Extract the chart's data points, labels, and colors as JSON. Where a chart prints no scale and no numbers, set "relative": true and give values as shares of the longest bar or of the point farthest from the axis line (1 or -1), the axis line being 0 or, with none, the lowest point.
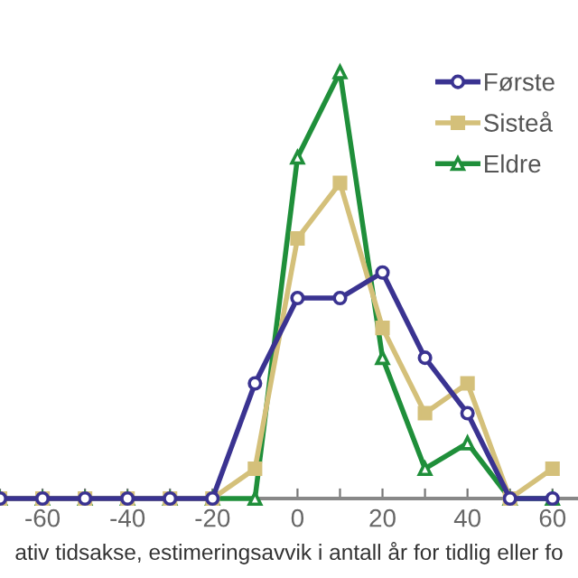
{
  "chart_data": {
    "type": "line",
    "relative": true,
    "xlabel": "ativ tidsakse, estimeringsavvik i antall år for tidlig eller fo",
    "x": [
      -70,
      -60,
      -50,
      -40,
      -30,
      -20,
      -10,
      0,
      10,
      20,
      30,
      40,
      50,
      60
    ],
    "xlim": [
      -70,
      66
    ],
    "xticks": [
      {
        "value": -70,
        "label": null
      },
      -60,
      {
        "value": -50,
        "label": null
      },
      -40,
      {
        "value": -30,
        "label": null
      },
      -20,
      {
        "value": -10,
        "label": null
      },
      0,
      {
        "value": 10,
        "label": null
      },
      20,
      {
        "value": 30,
        "label": null
      },
      40,
      {
        "value": 50,
        "label": null
      },
      60
    ],
    "series": [
      {
        "name": "Første",
        "color": "#3a3391",
        "marker": "circle",
        "values": [
          0,
          0,
          0,
          0,
          0,
          0,
          0.27,
          0.47,
          0.47,
          0.53,
          0.33,
          0.2,
          0,
          0
        ]
      },
      {
        "name": "Sisteå",
        "color": "#d4c07a",
        "marker": "square",
        "values": [
          0,
          0,
          0,
          0,
          0,
          0,
          0.07,
          0.61,
          0.74,
          0.4,
          0.2,
          0.27,
          0,
          0.07
        ]
      },
      {
        "name": "Eldre",
        "color": "#1f8f3a",
        "marker": "triangle",
        "values": [
          0,
          0,
          0,
          0,
          0,
          0,
          0,
          0.8,
          1,
          0.33,
          0.07,
          0.13,
          0,
          0
        ]
      }
    ],
    "legend": "top right",
    "grid": false
  }
}
